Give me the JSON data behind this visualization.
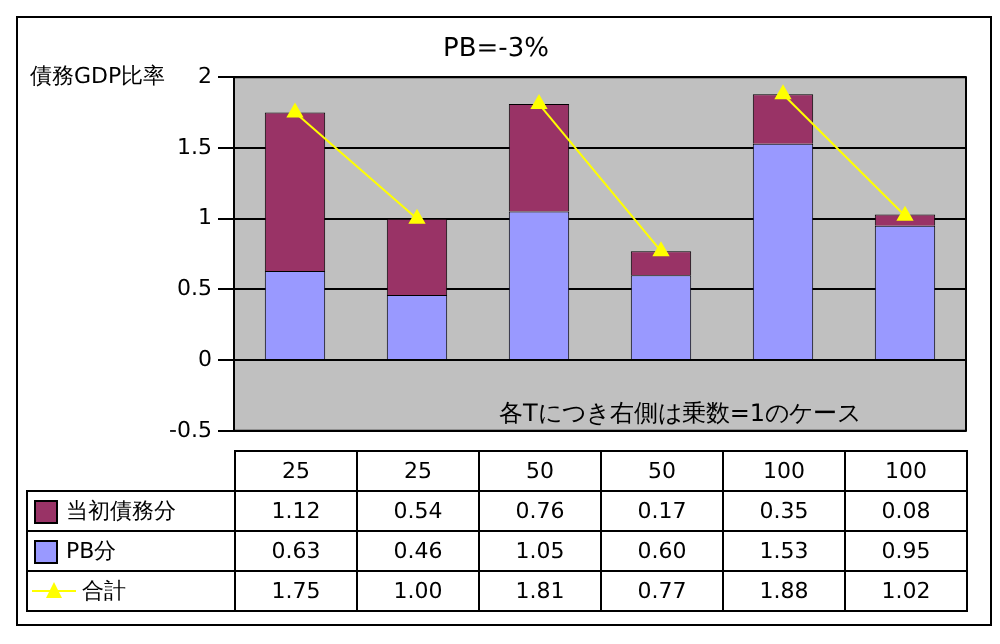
{
  "chart_data": {
    "type": "bar",
    "title": "PB=-3%",
    "ylabel": "債務GDP比率",
    "categories": [
      "25",
      "25",
      "50",
      "50",
      "100",
      "100"
    ],
    "stacked": true,
    "series": [
      {
        "name": "PB分",
        "color": "#9999ff",
        "values": [
          0.63,
          0.46,
          1.05,
          0.6,
          1.53,
          0.95
        ],
        "value_labels": [
          "0.63",
          "0.46",
          "1.05",
          "0.60",
          "1.53",
          "0.95"
        ]
      },
      {
        "name": "当初債務分",
        "color": "#993366",
        "values": [
          1.12,
          0.54,
          0.76,
          0.17,
          0.35,
          0.08
        ],
        "value_labels": [
          "1.12",
          "0.54",
          "0.76",
          "0.17",
          "0.35",
          "0.08"
        ]
      },
      {
        "name": "合計",
        "type": "line",
        "color": "#ffff00",
        "marker": "triangle",
        "values": [
          1.75,
          1.0,
          1.81,
          0.77,
          1.88,
          1.02
        ],
        "value_labels": [
          "1.75",
          "1.00",
          "1.81",
          "0.77",
          "1.88",
          "1.02"
        ]
      }
    ],
    "ylim": [
      -0.5,
      2
    ],
    "yticks": [
      -0.5,
      0,
      0.5,
      1,
      1.5,
      2
    ],
    "grid": "y",
    "legend": "bottom",
    "annotations": [
      "各Tにつき右側は乗数=1のケース"
    ]
  }
}
